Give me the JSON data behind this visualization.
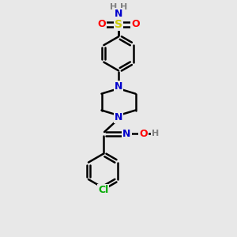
{
  "bg_color": "#e8e8e8",
  "atom_colors": {
    "C": "#000000",
    "N": "#0000cc",
    "O": "#ff0000",
    "S": "#cccc00",
    "Cl": "#00aa00",
    "H": "#808080"
  },
  "bond_color": "#000000",
  "bond_width": 1.8,
  "font_size": 9,
  "figsize": [
    3.0,
    3.0
  ],
  "dpi": 100
}
